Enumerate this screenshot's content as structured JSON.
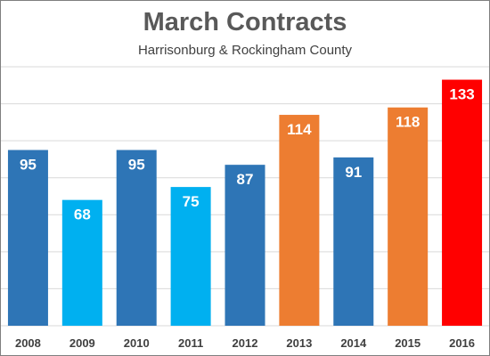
{
  "chart_data": {
    "type": "bar",
    "title": "March Contracts",
    "subtitle": "Harrisonburg & Rockingham County",
    "categories": [
      "2008",
      "2009",
      "2010",
      "2011",
      "2012",
      "2013",
      "2014",
      "2015",
      "2016"
    ],
    "values": [
      95,
      68,
      95,
      75,
      87,
      114,
      91,
      118,
      133
    ],
    "bar_colors": [
      "#2e75b6",
      "#00b0f0",
      "#2e75b6",
      "#00b0f0",
      "#2e75b6",
      "#ed7d31",
      "#2e75b6",
      "#ed7d31",
      "#ff0000"
    ],
    "ylim": [
      0,
      140
    ],
    "grid": true,
    "legend": "none"
  }
}
